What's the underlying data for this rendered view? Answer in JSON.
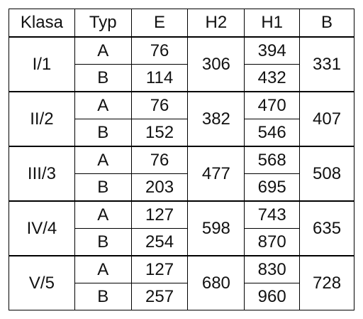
{
  "table": {
    "header": [
      "Klasa",
      "Typ",
      "E",
      "H2",
      "H1",
      "B"
    ],
    "groups": [
      {
        "klasa": "I/1",
        "h2": 306,
        "b": 331,
        "rows": [
          {
            "typ": "A",
            "e": 76,
            "h1": 394
          },
          {
            "typ": "B",
            "e": 114,
            "h1": 432
          }
        ]
      },
      {
        "klasa": "II/2",
        "h2": 382,
        "b": 407,
        "rows": [
          {
            "typ": "A",
            "e": 76,
            "h1": 470
          },
          {
            "typ": "B",
            "e": 152,
            "h1": 546
          }
        ]
      },
      {
        "klasa": "III/3",
        "h2": 477,
        "b": 508,
        "rows": [
          {
            "typ": "A",
            "e": 76,
            "h1": 568
          },
          {
            "typ": "B",
            "e": 203,
            "h1": 695
          }
        ]
      },
      {
        "klasa": "IV/4",
        "h2": 598,
        "b": 635,
        "rows": [
          {
            "typ": "A",
            "e": 127,
            "h1": 743
          },
          {
            "typ": "B",
            "e": 254,
            "h1": 870
          }
        ]
      },
      {
        "klasa": "V/5",
        "h2": 680,
        "b": 728,
        "rows": [
          {
            "typ": "A",
            "e": 127,
            "h1": 830
          },
          {
            "typ": "B",
            "e": 257,
            "h1": 960
          }
        ]
      }
    ]
  }
}
